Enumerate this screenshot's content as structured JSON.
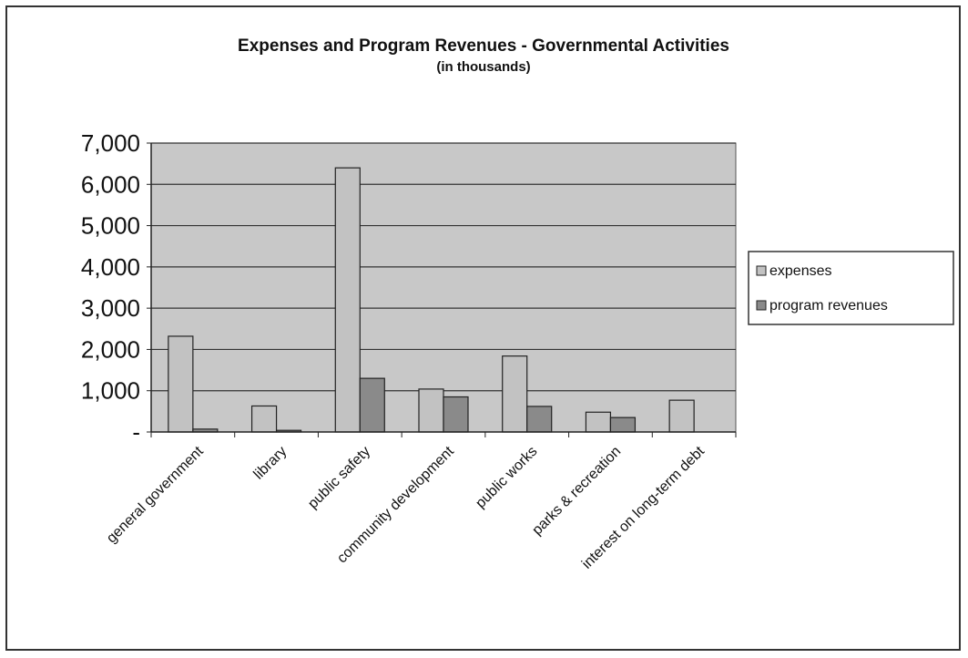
{
  "chart_data": {
    "type": "bar",
    "title": "Expenses and Program Revenues - Governmental Activities",
    "subtitle": "(in thousands)",
    "categories": [
      "general government",
      "library",
      "public safety",
      "community development",
      "public works",
      "parks & recreation",
      "interest on long-term debt"
    ],
    "series": [
      {
        "name": "expenses",
        "values": [
          2320,
          630,
          6400,
          1040,
          1840,
          480,
          770
        ],
        "color": "#c2c2c2"
      },
      {
        "name": "program revenues",
        "values": [
          70,
          40,
          1300,
          850,
          620,
          350,
          0
        ],
        "color": "#8a8a8a"
      }
    ],
    "y_tick_labels": [
      "-",
      "1,000",
      "2,000",
      "3,000",
      "4,000",
      "5,000",
      "6,000",
      "7,000"
    ],
    "ylim": [
      0,
      7000
    ],
    "grid": true,
    "legend_position": "right",
    "plot_background": "#c8c8c8"
  }
}
